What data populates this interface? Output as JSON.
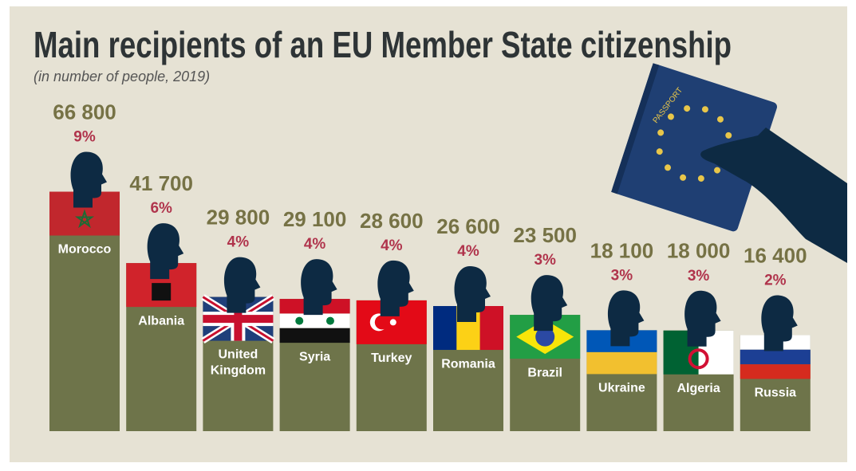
{
  "chart_data": {
    "type": "bar",
    "title": "Main recipients of an EU Member State citizenship",
    "subtitle": "(in number of people, 2019)",
    "categories": [
      "Morocco",
      "Albania",
      "United Kingdom",
      "Syria",
      "Turkey",
      "Romania",
      "Brazil",
      "Ukraine",
      "Algeria",
      "Russia"
    ],
    "values": [
      66800,
      41700,
      29800,
      29100,
      28600,
      26600,
      23500,
      18100,
      18000,
      16400
    ],
    "value_labels": [
      "66 800",
      "41 700",
      "29 800",
      "29 100",
      "28 600",
      "26 600",
      "23 500",
      "18 100",
      "18 000",
      "16 400"
    ],
    "shares": {
      "values": [
        9,
        6,
        4,
        4,
        4,
        4,
        3,
        3,
        3,
        2
      ],
      "value_labels": [
        "9%",
        "6%",
        "4%",
        "4%",
        "4%",
        "4%",
        "3%",
        "3%",
        "3%",
        "2%"
      ]
    },
    "passport_label": "PASSPORT",
    "color": "#6e744a"
  }
}
